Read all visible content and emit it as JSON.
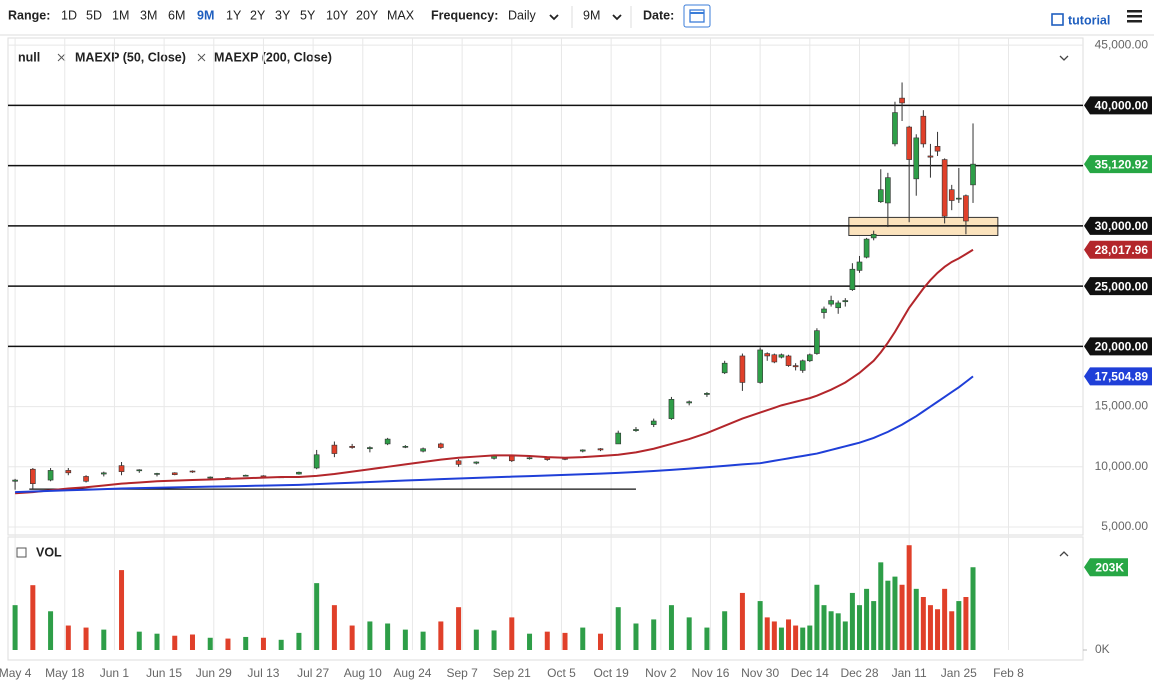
{
  "toolbar": {
    "range_label": "Range:",
    "ranges": [
      "1D",
      "5D",
      "1M",
      "3M",
      "6M",
      "9M",
      "1Y",
      "2Y",
      "3Y",
      "5Y",
      "10Y",
      "20Y",
      "MAX"
    ],
    "active_range": "9M",
    "frequency_label": "Frequency:",
    "frequency": "Daily",
    "period": "9M",
    "date_label": "Date:",
    "tutorial": "tutorial"
  },
  "chart_data": {
    "type": "candlestick",
    "grid": true,
    "xlim": [
      "May 2",
      "Mar 1"
    ],
    "xticks": [
      "May 4",
      "May 18",
      "Jun 1",
      "Jun 15",
      "Jun 29",
      "Jul 13",
      "Jul 27",
      "Aug 10",
      "Aug 24",
      "Sep 7",
      "Sep 21",
      "Oct 5",
      "Oct 19",
      "Nov 2",
      "Nov 16",
      "Nov 30",
      "Dec 14",
      "Dec 28",
      "Jan 11",
      "Jan 25",
      "Feb 8"
    ],
    "ylim": [
      4340,
      45590
    ],
    "yticks": [
      {
        "value": 5000,
        "label": "5,000.00"
      },
      {
        "value": 10000,
        "label": "10,000.00"
      },
      {
        "value": 15000,
        "label": "15,000.00"
      },
      {
        "value": 45000,
        "label": "45,000.00"
      }
    ],
    "candles": {
      "name": "null",
      "up_color": "#2e9e48",
      "down_color": "#e0402a",
      "last_color": "#27a745",
      "last_label": "35,120.92",
      "dates": [
        "May 4",
        "May 9",
        "May 14",
        "May 19",
        "May 24",
        "May 29",
        "Jun 3",
        "Jun 8",
        "Jun 13",
        "Jun 18",
        "Jun 23",
        "Jun 28",
        "Jul 3",
        "Jul 8",
        "Jul 13",
        "Jul 18",
        "Jul 23",
        "Jul 28",
        "Aug 2",
        "Aug 7",
        "Aug 12",
        "Aug 17",
        "Aug 22",
        "Aug 27",
        "Sep 1",
        "Sep 6",
        "Sep 11",
        "Sep 16",
        "Sep 21",
        "Sep 26",
        "Oct 1",
        "Oct 6",
        "Oct 11",
        "Oct 16",
        "Oct 21",
        "Oct 26",
        "Oct 31",
        "Nov 5",
        "Nov 10",
        "Nov 15",
        "Nov 20",
        "Nov 25",
        "Nov 30",
        "Dec 2",
        "Dec 4",
        "Dec 6",
        "Dec 8",
        "Dec 10",
        "Dec 12",
        "Dec 14",
        "Dec 16",
        "Dec 18",
        "Dec 20",
        "Dec 22",
        "Dec 24",
        "Dec 26",
        "Dec 28",
        "Dec 30",
        "Jan 1",
        "Jan 3",
        "Jan 5",
        "Jan 7",
        "Jan 9",
        "Jan 11",
        "Jan 13",
        "Jan 15",
        "Jan 17",
        "Jan 19",
        "Jan 21",
        "Jan 23",
        "Jan 25",
        "Jan 27",
        "Jan 29"
      ],
      "open": [
        8800,
        9800,
        8900,
        9700,
        9200,
        9400,
        10100,
        9700,
        9400,
        9500,
        9650,
        9100,
        9100,
        9250,
        9250,
        9150,
        9400,
        9900,
        11800,
        11700,
        11500,
        11900,
        11700,
        11300,
        11900,
        10500,
        10300,
        10700,
        10900,
        10700,
        10750,
        10700,
        11300,
        11500,
        11900,
        13000,
        13500,
        14000,
        15300,
        16000,
        17800,
        19200,
        17000,
        19400,
        19300,
        19100,
        19200,
        18400,
        18000,
        18800,
        19400,
        22800,
        23500,
        23200,
        23700,
        24700,
        26300,
        27400,
        29000,
        32000,
        31900,
        36800,
        40600,
        38200,
        33900,
        39100,
        35800,
        36600,
        35500,
        33000,
        32300,
        32500,
        33400
      ],
      "high": [
        9000,
        9900,
        9900,
        9900,
        9300,
        9600,
        10400,
        9800,
        9500,
        9550,
        9700,
        9200,
        9150,
        9350,
        9300,
        9200,
        9600,
        11400,
        12100,
        11900,
        11700,
        12400,
        11800,
        11600,
        12000,
        10650,
        10450,
        10950,
        10950,
        10800,
        10800,
        10780,
        11450,
        11550,
        13000,
        13300,
        14000,
        15800,
        15500,
        16200,
        18800,
        19400,
        19900,
        19500,
        19400,
        19400,
        19300,
        18600,
        18900,
        19400,
        21500,
        23300,
        24200,
        23800,
        24000,
        26900,
        27500,
        29000,
        29600,
        34700,
        34400,
        40300,
        41900,
        38300,
        37600,
        39600,
        36800,
        37800,
        35600,
        33400,
        34800,
        32600,
        38500
      ],
      "low": [
        8100,
        8100,
        8800,
        9300,
        8700,
        9200,
        9300,
        9500,
        9200,
        9300,
        9500,
        9000,
        9000,
        9200,
        9150,
        9100,
        9350,
        9800,
        10800,
        11500,
        11200,
        11800,
        11550,
        11200,
        11500,
        10000,
        10200,
        10600,
        10400,
        10600,
        10500,
        10550,
        11200,
        11300,
        11900,
        12900,
        13300,
        13900,
        15100,
        15800,
        17700,
        16300,
        16900,
        18800,
        18600,
        19000,
        18300,
        18000,
        17800,
        18700,
        19300,
        22300,
        23300,
        22700,
        23300,
        24600,
        26100,
        27300,
        28800,
        31900,
        29900,
        36600,
        38700,
        30300,
        32500,
        36500,
        34000,
        35800,
        30200,
        31300,
        31900,
        29300,
        31900
      ],
      "close": [
        8900,
        8600,
        9700,
        9500,
        8800,
        9500,
        9600,
        9750,
        9450,
        9350,
        9600,
        9150,
        9050,
        9300,
        9200,
        9170,
        9550,
        11000,
        11100,
        11600,
        11600,
        12300,
        11700,
        11500,
        11600,
        10200,
        10400,
        10900,
        10500,
        10750,
        10600,
        10620,
        11400,
        11400,
        12800,
        13100,
        13800,
        15600,
        15400,
        16100,
        18600,
        17000,
        19700,
        19200,
        18700,
        19300,
        18400,
        18300,
        18800,
        19300,
        21300,
        23100,
        23800,
        23600,
        23800,
        26400,
        27000,
        28900,
        29300,
        33000,
        34000,
        39400,
        40200,
        35500,
        37300,
        36800,
        35700,
        36200,
        30800,
        32100,
        32300,
        30400,
        35120.92
      ]
    },
    "series": [
      {
        "name": "MAEXP (50, Close)",
        "color": "#b3262b",
        "last_label": "28,017.96",
        "values": [
          7800,
          7900,
          8050,
          8200,
          8300,
          8450,
          8600,
          8700,
          8800,
          8850,
          8900,
          8950,
          9000,
          9050,
          9100,
          9150,
          9150,
          9250,
          9400,
          9600,
          9800,
          10000,
          10200,
          10400,
          10600,
          10750,
          10850,
          10950,
          10950,
          10900,
          10800,
          10750,
          10800,
          10900,
          11000,
          11200,
          11500,
          11900,
          12300,
          12800,
          13400,
          14000,
          14500,
          14700,
          14900,
          15100,
          15250,
          15400,
          15550,
          15700,
          15900,
          16150,
          16400,
          16700,
          17000,
          17400,
          17800,
          18300,
          18800,
          19500,
          20300,
          21200,
          22200,
          23200,
          24000,
          24800,
          25500,
          26100,
          26600,
          27000,
          27300,
          27650,
          28017.96
        ]
      },
      {
        "name": "MAEXP (200, Close)",
        "color": "#1f3fd8",
        "last_label": "17,504.89",
        "values": [
          7900,
          7950,
          8000,
          8050,
          8100,
          8150,
          8200,
          8230,
          8260,
          8290,
          8320,
          8350,
          8380,
          8410,
          8440,
          8470,
          8500,
          8560,
          8620,
          8680,
          8740,
          8800,
          8860,
          8920,
          8980,
          9030,
          9080,
          9130,
          9180,
          9230,
          9280,
          9330,
          9380,
          9430,
          9500,
          9570,
          9650,
          9750,
          9850,
          9960,
          10080,
          10200,
          10300,
          10400,
          10500,
          10600,
          10700,
          10800,
          10900,
          11000,
          11100,
          11250,
          11400,
          11550,
          11700,
          11850,
          12000,
          12200,
          12400,
          12650,
          12900,
          13200,
          13500,
          13850,
          14200,
          14600,
          15000,
          15400,
          15800,
          16200,
          16600,
          17050,
          17504.89
        ]
      }
    ],
    "hlines": [
      {
        "value": 40000,
        "label": "40,000.00"
      },
      {
        "value": 35000
      },
      {
        "value": 30000,
        "label": "30,000.00"
      },
      {
        "value": 25000,
        "label": "25,000.00"
      },
      {
        "value": 20000,
        "label": "20,000.00"
      }
    ],
    "zone": {
      "x": [
        "Dec 25",
        "Feb 5"
      ],
      "y": [
        29200,
        30700
      ],
      "color": "#fbe3bd"
    },
    "trendline": {
      "x": [
        "May 8",
        "Oct 26"
      ],
      "y": [
        8150,
        8150
      ]
    },
    "volume": {
      "name": "VOL",
      "ylim": [
        0,
        260
      ],
      "yticks": [
        {
          "value": 0,
          "label": "0K"
        }
      ],
      "last_label": "203K",
      "values": [
        110,
        159,
        95,
        60,
        55,
        50,
        196,
        45,
        40,
        35,
        38,
        30,
        28,
        32,
        30,
        25,
        42,
        164,
        110,
        60,
        70,
        65,
        50,
        45,
        70,
        105,
        50,
        48,
        80,
        40,
        45,
        42,
        55,
        40,
        105,
        65,
        75,
        110,
        80,
        55,
        95,
        140,
        120,
        80,
        70,
        55,
        75,
        60,
        55,
        60,
        160,
        110,
        95,
        90,
        70,
        140,
        110,
        150,
        120,
        215,
        170,
        180,
        160,
        257,
        150,
        130,
        110,
        100,
        150,
        95,
        120,
        130,
        203
      ]
    }
  }
}
